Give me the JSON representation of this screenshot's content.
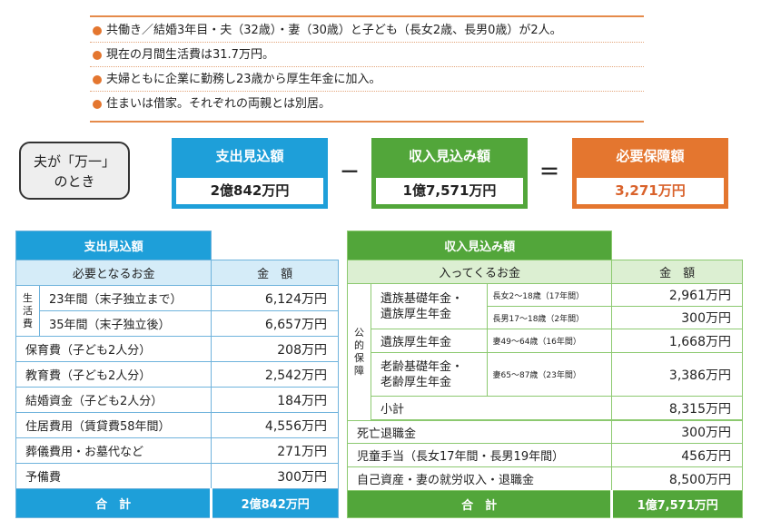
{
  "conditions": [
    "共働き／結婚3年目・夫（32歳）・妻（30歳）と子ども（長女2歳、長男0歳）が2人。",
    "現在の月間生活費は31.7万円。",
    "夫婦ともに企業に勤務し23歳から厚生年金に加入。",
    "住まいは借家。それぞれの両親とは別居。"
  ],
  "case": {
    "line1": "夫が「万一」",
    "line2": "のとき"
  },
  "formula": {
    "expense": {
      "label": "支出見込額",
      "value": "2億842万円"
    },
    "minus": "－",
    "income": {
      "label": "収入見込み額",
      "value": "1億7,571万円"
    },
    "equals": "＝",
    "required": {
      "label": "必要保障額",
      "value": "3,271万円"
    }
  },
  "colors": {
    "blue": "#1e9fd9",
    "green": "#52a63a",
    "orange": "#e4762f"
  },
  "expense_table": {
    "title": "支出見込額",
    "col_item": "必要となるお金",
    "col_amount": "金　額",
    "living_label": "生\n活\n費",
    "living_rows": [
      {
        "label": "23年間（末子独立まで）",
        "amount": "6,124万円"
      },
      {
        "label": "35年間（末子独立後）",
        "amount": "6,657万円"
      }
    ],
    "rows": [
      {
        "label": "保育費（子ども2人分）",
        "amount": "208万円"
      },
      {
        "label": "教育費（子ども2人分）",
        "amount": "2,542万円"
      },
      {
        "label": "結婚資金（子ども2人分）",
        "amount": "184万円"
      },
      {
        "label": "住居費用（賃貸費58年間）",
        "amount": "4,556万円"
      },
      {
        "label": "葬儀費用・お墓代など",
        "amount": "271万円"
      },
      {
        "label": "予備費",
        "amount": "300万円"
      }
    ],
    "total_label": "合　計",
    "total_amount": "2億842万円"
  },
  "income_table": {
    "title": "収入見込み額",
    "col_item": "入ってくるお金",
    "col_amount": "金　額",
    "public_label": "公\n的\n保\n障",
    "public": {
      "survivor_both": {
        "label1": "遺族基礎年金・",
        "label2": "遺族厚生年金",
        "sub": [
          {
            "note": "長女2～18歳（17年間）",
            "amount": "2,961万円"
          },
          {
            "note": "長男17～18歳（2年間）",
            "amount": "300万円"
          }
        ]
      },
      "survivor_kosei": {
        "label": "遺族厚生年金",
        "note": "妻49～64歳（16年間）",
        "amount": "1,668万円"
      },
      "old_age": {
        "label1": "老齢基礎年金・",
        "label2": "老齢厚生年金",
        "note": "妻65～87歳（23年間）",
        "amount": "3,386万円"
      },
      "subtotal": {
        "label": "小計",
        "amount": "8,315万円"
      }
    },
    "rows": [
      {
        "label": "死亡退職金",
        "amount": "300万円"
      },
      {
        "label": "児童手当（長女17年間・長男19年間）",
        "amount": "456万円"
      },
      {
        "label": "自己資産・妻の就労収入・退職金",
        "amount": "8,500万円"
      }
    ],
    "total_label": "合　計",
    "total_amount": "1億7,571万円"
  }
}
